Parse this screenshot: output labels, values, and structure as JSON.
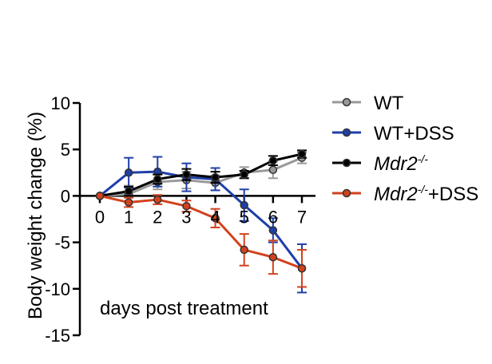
{
  "chart_data": {
    "type": "line",
    "xlabel": "days post treatment",
    "ylabel": "Body weight change (%)",
    "x": [
      0,
      1,
      2,
      3,
      4,
      5,
      6,
      7
    ],
    "x_tick_labels": [
      "0",
      "1",
      "2",
      "3",
      "4",
      "5",
      "6",
      "7"
    ],
    "ylim": [
      -15,
      10
    ],
    "y_ticks": [
      10,
      5,
      0,
      -5,
      -10,
      -15
    ],
    "y_tick_labels": [
      "10",
      "5",
      "0",
      "-5",
      "-10",
      "-15"
    ],
    "grid": false,
    "legend_position": "right",
    "series": [
      {
        "name": "WT",
        "legend_base": "WT",
        "legend_sup": "",
        "legend_suffix": "",
        "italic": false,
        "color": "#999999",
        "marker_fill": "#999999",
        "values": [
          0,
          0.2,
          1.5,
          1.7,
          1.4,
          2.5,
          2.8,
          4.1
        ],
        "errors": [
          0,
          0.9,
          0.8,
          0.9,
          0.8,
          0.6,
          0.9,
          0.6
        ]
      },
      {
        "name": "WT+DSS",
        "legend_base": "WT+DSS",
        "legend_sup": "",
        "legend_suffix": "",
        "italic": false,
        "color": "#1f3fa8",
        "marker_fill": "#1f3fa8",
        "values": [
          0,
          2.5,
          2.6,
          2.0,
          1.8,
          -1.0,
          -3.7,
          -7.8
        ],
        "errors": [
          0,
          1.6,
          1.6,
          1.5,
          1.2,
          1.7,
          1.3,
          2.6
        ]
      },
      {
        "name": "Mdr2-/-",
        "legend_base": "Mdr2",
        "legend_sup": "-/-",
        "legend_suffix": "",
        "italic": true,
        "color": "#000000",
        "marker_fill": "#000000",
        "values": [
          0,
          0.5,
          1.8,
          2.3,
          2.0,
          2.3,
          3.8,
          4.5
        ],
        "errors": [
          0,
          0.5,
          0.5,
          0.6,
          0.6,
          0.4,
          0.5,
          0.4
        ]
      },
      {
        "name": "Mdr2-/-+DSS",
        "legend_base": "Mdr2",
        "legend_sup": "-/-",
        "legend_suffix": "+DSS",
        "italic": true,
        "color": "#d2421c",
        "marker_fill": "#d2421c",
        "values": [
          0,
          -0.7,
          -0.4,
          -1.1,
          -2.4,
          -5.8,
          -6.6,
          -7.8
        ],
        "errors": [
          0,
          0.5,
          0.5,
          0.6,
          1.0,
          1.7,
          1.8,
          2.0
        ]
      }
    ]
  }
}
